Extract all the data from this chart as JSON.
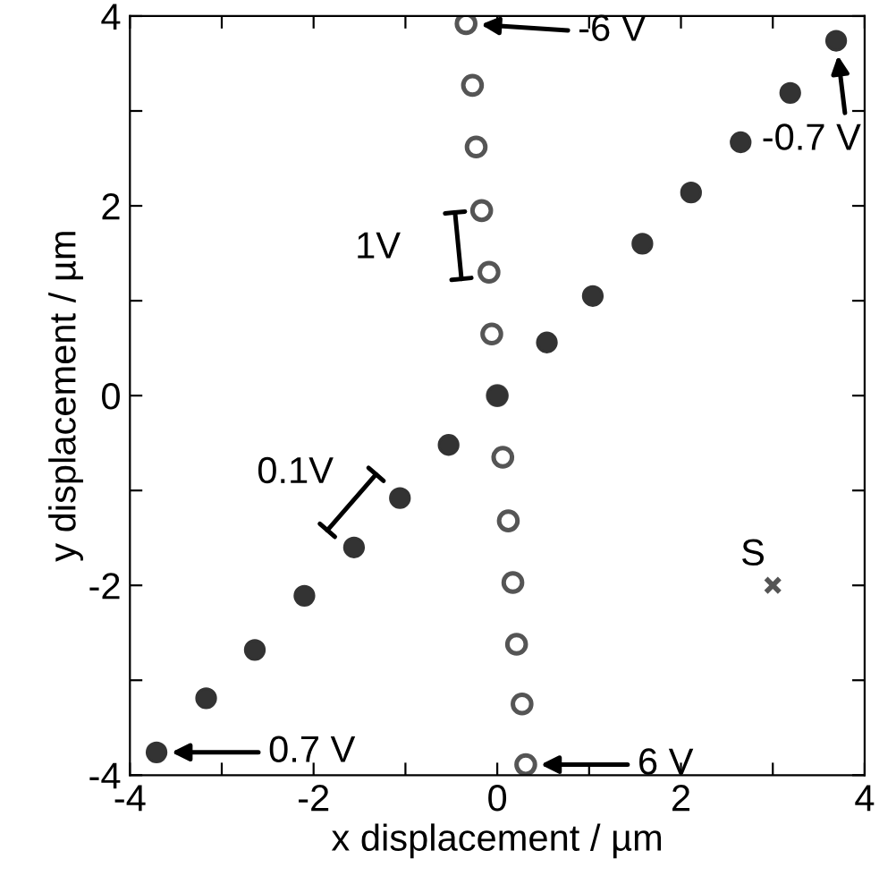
{
  "chart_data": {
    "type": "scatter",
    "xlabel": "x displacement / µm",
    "ylabel": "y displacement / µm",
    "xlim": [
      -4,
      4
    ],
    "ylim": [
      -4,
      4
    ],
    "xticks": [
      -4,
      {
        "value": -3,
        "label": null
      },
      -2,
      {
        "value": -1,
        "label": null
      },
      0,
      {
        "value": 1,
        "label": null
      },
      2,
      {
        "value": 3,
        "label": null
      },
      4
    ],
    "yticks": [
      -4,
      {
        "value": -3,
        "label": null
      },
      -2,
      {
        "value": -1,
        "label": null
      },
      0,
      {
        "value": 1,
        "label": null
      },
      2,
      {
        "value": 3,
        "label": null
      },
      4
    ],
    "grid": false,
    "legend": false,
    "series": [
      {
        "color": "#333333",
        "marker": "circle",
        "x": [
          3.69,
          3.19,
          2.65,
          2.11,
          1.58,
          1.04,
          0.54,
          0,
          -0.53,
          -1.06,
          -1.56,
          -2.1,
          -2.64,
          -3.17,
          -3.71
        ],
        "values": [
          3.74,
          3.19,
          2.67,
          2.14,
          1.6,
          1.05,
          0.56,
          0,
          -0.52,
          -1.08,
          -1.6,
          -2.11,
          -2.68,
          -3.19,
          -3.76
        ]
      },
      {
        "color": "#555555",
        "marker": "circle",
        "x": [
          -0.34,
          -0.27,
          -0.23,
          -0.17,
          -0.09,
          -0.06,
          0,
          0.06,
          0.12,
          0.17,
          0.21,
          0.27,
          0.31
        ],
        "values": [
          3.92,
          3.27,
          2.62,
          1.95,
          1.3,
          0.65,
          0,
          -0.65,
          -1.32,
          -1.97,
          -2.62,
          -3.25,
          -3.89
        ]
      },
      {
        "color": "#555555",
        "marker": "cross",
        "x": [
          3
        ],
        "values": [
          -2
        ]
      }
    ],
    "annotations": [
      "-6 V",
      "-0.7 V",
      "0.7 V",
      "6 V",
      {
        "text": "S",
        "x": 3,
        "y": -2
      },
      "1V",
      "0.1V"
    ]
  }
}
